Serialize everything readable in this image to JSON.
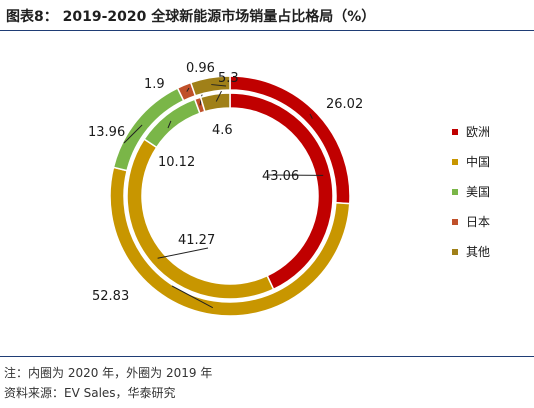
{
  "title": "图表8： 2019-2020 全球新能源市场销量占比格局（%）",
  "notes": {
    "note": "注：内圈为 2020 年，外圈为 2019 年",
    "source": "资料来源：EV Sales，华泰研究"
  },
  "chart_data": {
    "type": "donut",
    "categories": [
      "欧洲",
      "中国",
      "美国",
      "日本",
      "其他"
    ],
    "colors": [
      "#c00000",
      "#c89600",
      "#7ab648",
      "#c0502a",
      "#a08018"
    ],
    "legend_position": "right",
    "series": [
      {
        "values": [
          43.06,
          41.27,
          10.12,
          0.96,
          4.6
        ]
      },
      {
        "values": [
          26.02,
          52.83,
          13.96,
          1.9,
          5.3
        ]
      }
    ],
    "labels": {
      "inner": [
        "43.06",
        "41.27",
        "10.12",
        "0.96",
        "4.6"
      ],
      "outer": [
        "26.02",
        "52.83",
        "13.96",
        "1.9",
        "5.3"
      ]
    }
  }
}
